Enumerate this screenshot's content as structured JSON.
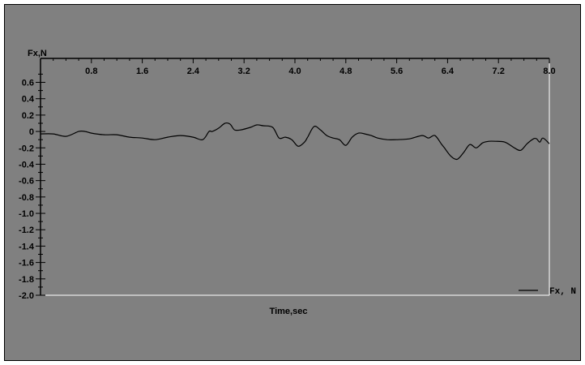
{
  "chart_data": {
    "type": "line",
    "ylabel": "Fx,N",
    "xlabel": "Time,sec",
    "xlim": [
      0,
      8.0
    ],
    "ylim": [
      -2.0,
      0.7
    ],
    "x_ticks": [
      0.8,
      1.6,
      2.4,
      3.2,
      4.0,
      4.8,
      5.6,
      6.4,
      7.2,
      8.0
    ],
    "x_tick_labels": [
      "0.8",
      "1.6",
      "2.4",
      "3.2",
      "4.0",
      "4.8",
      "5.6",
      "6.4",
      "7.2",
      "8.0"
    ],
    "y_ticks": [
      0.6,
      0.4,
      0.2,
      0,
      -0.2,
      -0.4,
      -0.6,
      -0.8,
      -1.0,
      -1.2,
      -1.4,
      -1.6,
      -1.8,
      -2.0
    ],
    "y_tick_labels": [
      "0.6",
      "0.4",
      "0.2",
      "0",
      "-0.2",
      "-0.4",
      "-0.6",
      "-0.8",
      "-1.0",
      "-1.2",
      "-1.4",
      "-1.6",
      "-1.8",
      "-2.0"
    ],
    "grid": false,
    "legend_position": "bottom-right",
    "series": [
      {
        "name": "Fx, N",
        "color": "#000000",
        "x": [
          0,
          0.2,
          0.4,
          0.6,
          0.7,
          0.8,
          1.0,
          1.2,
          1.4,
          1.6,
          1.8,
          2.0,
          2.2,
          2.4,
          2.55,
          2.65,
          2.7,
          2.8,
          2.9,
          2.98,
          3.05,
          3.15,
          3.3,
          3.4,
          3.5,
          3.65,
          3.75,
          3.85,
          3.95,
          4.05,
          4.15,
          4.2,
          4.3,
          4.4,
          4.5,
          4.6,
          4.7,
          4.8,
          4.9,
          5.0,
          5.1,
          5.2,
          5.3,
          5.45,
          5.6,
          5.8,
          6.0,
          6.1,
          6.2,
          6.3,
          6.35,
          6.45,
          6.55,
          6.65,
          6.75,
          6.85,
          6.95,
          7.05,
          7.15,
          7.3,
          7.45,
          7.55,
          7.65,
          7.75,
          7.8,
          7.85,
          7.9,
          8.0
        ],
        "y": [
          -0.03,
          -0.03,
          -0.06,
          0.0,
          0.0,
          -0.02,
          -0.04,
          -0.04,
          -0.07,
          -0.08,
          -0.1,
          -0.07,
          -0.05,
          -0.07,
          -0.1,
          0.0,
          0.0,
          0.04,
          0.1,
          0.09,
          0.02,
          0.02,
          0.05,
          0.08,
          0.07,
          0.05,
          -0.08,
          -0.07,
          -0.1,
          -0.18,
          -0.13,
          -0.07,
          0.06,
          0.02,
          -0.05,
          -0.08,
          -0.1,
          -0.17,
          -0.07,
          -0.02,
          -0.03,
          -0.05,
          -0.08,
          -0.1,
          -0.1,
          -0.09,
          -0.05,
          -0.08,
          -0.05,
          -0.15,
          -0.2,
          -0.3,
          -0.34,
          -0.26,
          -0.16,
          -0.2,
          -0.14,
          -0.12,
          -0.12,
          -0.13,
          -0.2,
          -0.23,
          -0.15,
          -0.09,
          -0.09,
          -0.13,
          -0.08,
          -0.15
        ]
      }
    ]
  }
}
